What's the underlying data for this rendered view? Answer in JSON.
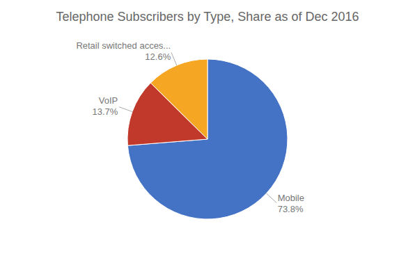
{
  "chart_data": {
    "type": "pie",
    "title": "Telephone Subscribers by Type, Share as of Dec 2016",
    "categories": [
      "Mobile",
      "VoIP",
      "Retail switched acces..."
    ],
    "values": [
      73.8,
      13.7,
      12.6
    ],
    "value_labels": [
      "73.8%",
      "13.7%",
      "12.6%"
    ],
    "colors": [
      "#4472C4",
      "#C0392B",
      "#F5A623"
    ],
    "data_labels": true
  }
}
